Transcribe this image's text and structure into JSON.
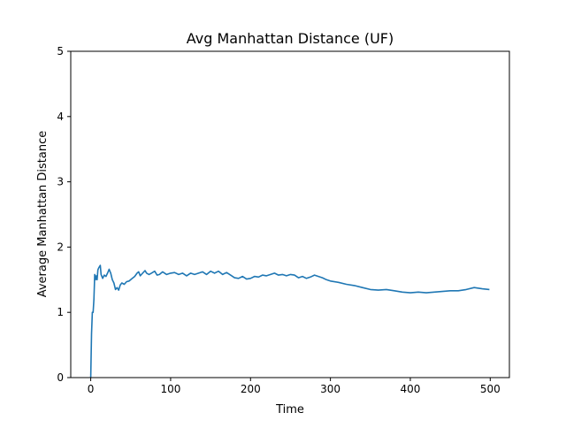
{
  "chart_data": {
    "type": "line",
    "title": "Avg Manhattan Distance (UF)",
    "xlabel": "Time",
    "ylabel": "Average Manhattan Distance",
    "xlim": [
      -25,
      524
    ],
    "ylim": [
      0,
      5
    ],
    "xticks": [
      0,
      100,
      200,
      300,
      400,
      500
    ],
    "yticks": [
      0,
      1,
      2,
      3,
      4,
      5
    ],
    "grid": false,
    "line_color": "#1f77b4",
    "series": [
      {
        "x": [
          0,
          1,
          2,
          3,
          4,
          5,
          6,
          7,
          8,
          9,
          10,
          11,
          12,
          13,
          15,
          17,
          19,
          21,
          23,
          25,
          27,
          29,
          31,
          33,
          35,
          37,
          39,
          42,
          45,
          48,
          52,
          55,
          58,
          60,
          62,
          65,
          68,
          70,
          73,
          76,
          80,
          83,
          86,
          90,
          95,
          100,
          105,
          110,
          115,
          120,
          125,
          130,
          135,
          140,
          145,
          150,
          155,
          160,
          165,
          170,
          175,
          180,
          185,
          190,
          195,
          200,
          205,
          210,
          215,
          220,
          225,
          230,
          235,
          240,
          245,
          250,
          255,
          260,
          265,
          270,
          275,
          280,
          285,
          290,
          295,
          300,
          310,
          320,
          330,
          340,
          350,
          360,
          370,
          380,
          390,
          400,
          410,
          420,
          430,
          440,
          450,
          460,
          470,
          480,
          490,
          499
        ],
        "y": [
          0.0,
          0.67,
          1.0,
          1.0,
          1.2,
          1.58,
          1.5,
          1.56,
          1.5,
          1.65,
          1.68,
          1.7,
          1.72,
          1.58,
          1.52,
          1.57,
          1.55,
          1.6,
          1.66,
          1.6,
          1.5,
          1.45,
          1.35,
          1.38,
          1.34,
          1.42,
          1.45,
          1.43,
          1.47,
          1.48,
          1.52,
          1.55,
          1.6,
          1.62,
          1.56,
          1.6,
          1.64,
          1.6,
          1.58,
          1.6,
          1.63,
          1.57,
          1.58,
          1.62,
          1.58,
          1.6,
          1.61,
          1.58,
          1.6,
          1.56,
          1.6,
          1.58,
          1.6,
          1.62,
          1.58,
          1.63,
          1.6,
          1.63,
          1.58,
          1.61,
          1.57,
          1.53,
          1.52,
          1.55,
          1.51,
          1.52,
          1.55,
          1.54,
          1.57,
          1.56,
          1.58,
          1.6,
          1.57,
          1.58,
          1.56,
          1.58,
          1.57,
          1.53,
          1.55,
          1.52,
          1.54,
          1.57,
          1.55,
          1.53,
          1.5,
          1.48,
          1.46,
          1.43,
          1.41,
          1.38,
          1.35,
          1.34,
          1.35,
          1.33,
          1.31,
          1.3,
          1.31,
          1.3,
          1.31,
          1.32,
          1.33,
          1.33,
          1.35,
          1.38,
          1.36,
          1.35
        ]
      }
    ]
  }
}
